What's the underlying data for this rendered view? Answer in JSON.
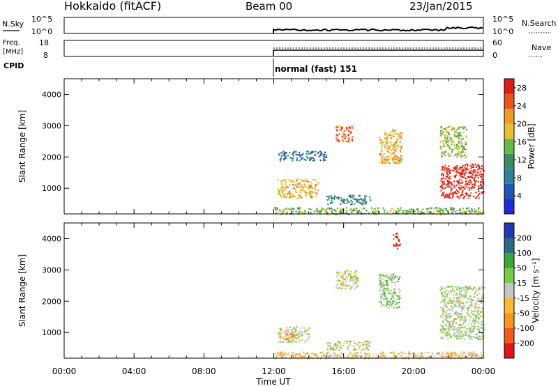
{
  "header": {
    "station": "Hokkaido (fitACF)",
    "beam": "Beam 00",
    "date": "23/Jan/2015"
  },
  "panels": {
    "nsky": {
      "left_label": "N.Sky",
      "left_ticks": [
        "10^5",
        "10^0"
      ],
      "right_ticks": [
        "10^5",
        "10^0"
      ],
      "right_label": "N.Search"
    },
    "freq": {
      "left_label_1": "Freq.",
      "left_label_2": "[MHz]",
      "left_ticks": [
        "18",
        "8"
      ],
      "right_ticks": [
        "60",
        "0"
      ],
      "right_label": "Nave"
    },
    "cpid": {
      "label": "CPID",
      "mode_text": "normal (fast) 151"
    }
  },
  "colors": {
    "power_scale": [
      "#1e2bd9",
      "#1f56b8",
      "#2f7f9e",
      "#3d8a63",
      "#68b848",
      "#e8c22c",
      "#f09a26",
      "#f0521e",
      "#e21a1a"
    ],
    "velocity_scale": [
      "#e4141c",
      "#f05a1e",
      "#f5961e",
      "#f8bb32",
      "#c4c4c4",
      "#74cc40",
      "#3aa838",
      "#2c6888",
      "#2038b8"
    ]
  },
  "chart_data": [
    {
      "type": "heatmap",
      "title": "Power",
      "ylabel": "Slant Range [km]",
      "xlabel": "",
      "ylim": [
        180,
        4500
      ],
      "yticks": [
        "1000",
        "2000",
        "3000",
        "4000"
      ],
      "xlim_hours": [
        0,
        24
      ],
      "colorbar": {
        "label": "Power [dB]",
        "ticks": [
          "4",
          "8",
          "12",
          "16",
          "20",
          "24",
          "28"
        ],
        "range": [
          0,
          30
        ]
      },
      "features": [
        {
          "hours": [
            12.0,
            24.0
          ],
          "km": [
            180,
            400
          ],
          "power_db": 15
        },
        {
          "hours": [
            12.2,
            14.5
          ],
          "km": [
            700,
            1300
          ],
          "power_db": 20
        },
        {
          "hours": [
            12.2,
            15.0
          ],
          "km": [
            1900,
            2200
          ],
          "power_db": 8
        },
        {
          "hours": [
            15.0,
            17.5
          ],
          "km": [
            500,
            800
          ],
          "power_db": 10
        },
        {
          "hours": [
            15.5,
            16.5
          ],
          "km": [
            2500,
            3000
          ],
          "power_db": 24
        },
        {
          "hours": [
            18.0,
            19.3
          ],
          "km": [
            1800,
            2900
          ],
          "power_db": 20
        },
        {
          "hours": [
            21.5,
            24.0
          ],
          "km": [
            700,
            1800
          ],
          "power_db": 28
        },
        {
          "hours": [
            21.5,
            23.0
          ],
          "km": [
            2000,
            3000
          ],
          "power_db": 16
        }
      ]
    },
    {
      "type": "heatmap",
      "title": "Velocity",
      "ylabel": "Slant Range [km]",
      "xlabel": "Time UT",
      "ylim": [
        180,
        4500
      ],
      "yticks": [
        "1000",
        "2000",
        "3000",
        "4000"
      ],
      "xticks": [
        "00:00",
        "04:00",
        "08:00",
        "12:00",
        "16:00",
        "20:00",
        "00:00"
      ],
      "xlim_hours": [
        0,
        24
      ],
      "colorbar": {
        "label": "Velocity [m s⁻¹]",
        "ticks": [
          "200",
          "100",
          "50",
          "15",
          "-15",
          "-50",
          "-100",
          "-200"
        ],
        "range": [
          -250,
          250
        ]
      },
      "features": [
        {
          "hours": [
            12.0,
            24.0
          ],
          "km": [
            180,
            400
          ],
          "velocity_ms": -50
        },
        {
          "hours": [
            12.2,
            14.0
          ],
          "km": [
            700,
            1200
          ],
          "velocity_ms": 0
        },
        {
          "hours": [
            12.6,
            13.4
          ],
          "km": [
            800,
            1000
          ],
          "velocity_ms": -100
        },
        {
          "hours": [
            15.0,
            17.5
          ],
          "km": [
            450,
            750
          ],
          "velocity_ms": 0
        },
        {
          "hours": [
            15.5,
            16.8
          ],
          "km": [
            2400,
            3000
          ],
          "velocity_ms": 0
        },
        {
          "hours": [
            18.0,
            19.2
          ],
          "km": [
            1800,
            2900
          ],
          "velocity_ms": 50
        },
        {
          "hours": [
            21.5,
            24.0
          ],
          "km": [
            800,
            2500
          ],
          "velocity_ms": 20
        },
        {
          "hours": [
            18.8,
            19.2
          ],
          "km": [
            3700,
            4200
          ],
          "velocity_ms": -200
        }
      ]
    }
  ]
}
